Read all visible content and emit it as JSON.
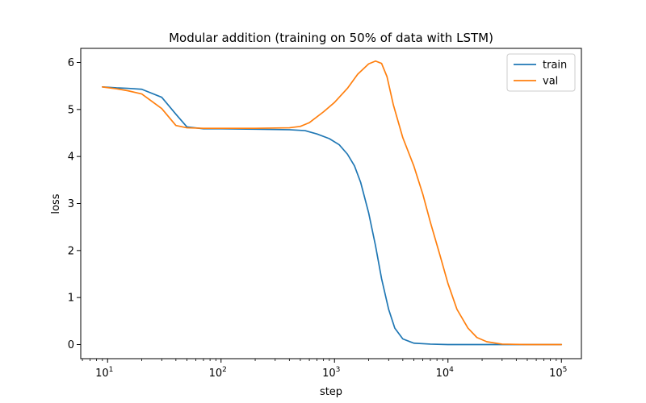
{
  "chart_data": {
    "type": "line",
    "title": "Modular addition (training on 50% of data with LSTM)",
    "xlabel": "step",
    "ylabel": "loss",
    "xscale": "log",
    "xlim": [
      5.8,
      150000
    ],
    "ylim": [
      -0.3,
      6.3
    ],
    "xticks": [
      {
        "base": "10",
        "exp": "1",
        "value": 10
      },
      {
        "base": "10",
        "exp": "2",
        "value": 100
      },
      {
        "base": "10",
        "exp": "3",
        "value": 1000
      },
      {
        "base": "10",
        "exp": "4",
        "value": 10000
      },
      {
        "base": "10",
        "exp": "5",
        "value": 100000
      }
    ],
    "yticks": [
      {
        "label": "0",
        "value": 0
      },
      {
        "label": "1",
        "value": 1
      },
      {
        "label": "2",
        "value": 2
      },
      {
        "label": "3",
        "value": 3
      },
      {
        "label": "4",
        "value": 4
      },
      {
        "label": "5",
        "value": 5
      },
      {
        "label": "6",
        "value": 6
      }
    ],
    "grid": false,
    "legend": {
      "position": "top-right"
    },
    "series": [
      {
        "name": "train",
        "color": "#1f77b4",
        "points": [
          [
            9,
            5.48
          ],
          [
            12,
            5.46
          ],
          [
            15,
            5.45
          ],
          [
            20,
            5.43
          ],
          [
            30,
            5.26
          ],
          [
            40,
            4.9
          ],
          [
            50,
            4.63
          ],
          [
            70,
            4.59
          ],
          [
            100,
            4.59
          ],
          [
            200,
            4.58
          ],
          [
            400,
            4.57
          ],
          [
            550,
            4.55
          ],
          [
            700,
            4.48
          ],
          [
            900,
            4.38
          ],
          [
            1100,
            4.25
          ],
          [
            1300,
            4.05
          ],
          [
            1500,
            3.8
          ],
          [
            1700,
            3.45
          ],
          [
            2000,
            2.8
          ],
          [
            2300,
            2.1
          ],
          [
            2600,
            1.4
          ],
          [
            3000,
            0.75
          ],
          [
            3400,
            0.35
          ],
          [
            4000,
            0.12
          ],
          [
            5000,
            0.03
          ],
          [
            7000,
            0.01
          ],
          [
            10000,
            0.0
          ],
          [
            30000,
            0.0
          ],
          [
            100000,
            0.0
          ]
        ]
      },
      {
        "name": "val",
        "color": "#ff7f0e",
        "points": [
          [
            9,
            5.48
          ],
          [
            12,
            5.44
          ],
          [
            15,
            5.4
          ],
          [
            20,
            5.33
          ],
          [
            30,
            5.02
          ],
          [
            40,
            4.66
          ],
          [
            50,
            4.61
          ],
          [
            70,
            4.6
          ],
          [
            100,
            4.6
          ],
          [
            200,
            4.6
          ],
          [
            400,
            4.61
          ],
          [
            500,
            4.64
          ],
          [
            600,
            4.72
          ],
          [
            800,
            4.95
          ],
          [
            1000,
            5.15
          ],
          [
            1300,
            5.45
          ],
          [
            1600,
            5.75
          ],
          [
            2000,
            5.97
          ],
          [
            2300,
            6.03
          ],
          [
            2600,
            5.98
          ],
          [
            2900,
            5.7
          ],
          [
            3300,
            5.1
          ],
          [
            4000,
            4.4
          ],
          [
            5000,
            3.8
          ],
          [
            6000,
            3.2
          ],
          [
            7000,
            2.6
          ],
          [
            8500,
            1.9
          ],
          [
            10000,
            1.3
          ],
          [
            12000,
            0.75
          ],
          [
            15000,
            0.35
          ],
          [
            18000,
            0.15
          ],
          [
            22000,
            0.06
          ],
          [
            30000,
            0.01
          ],
          [
            50000,
            0.0
          ],
          [
            100000,
            0.0
          ]
        ]
      }
    ]
  }
}
